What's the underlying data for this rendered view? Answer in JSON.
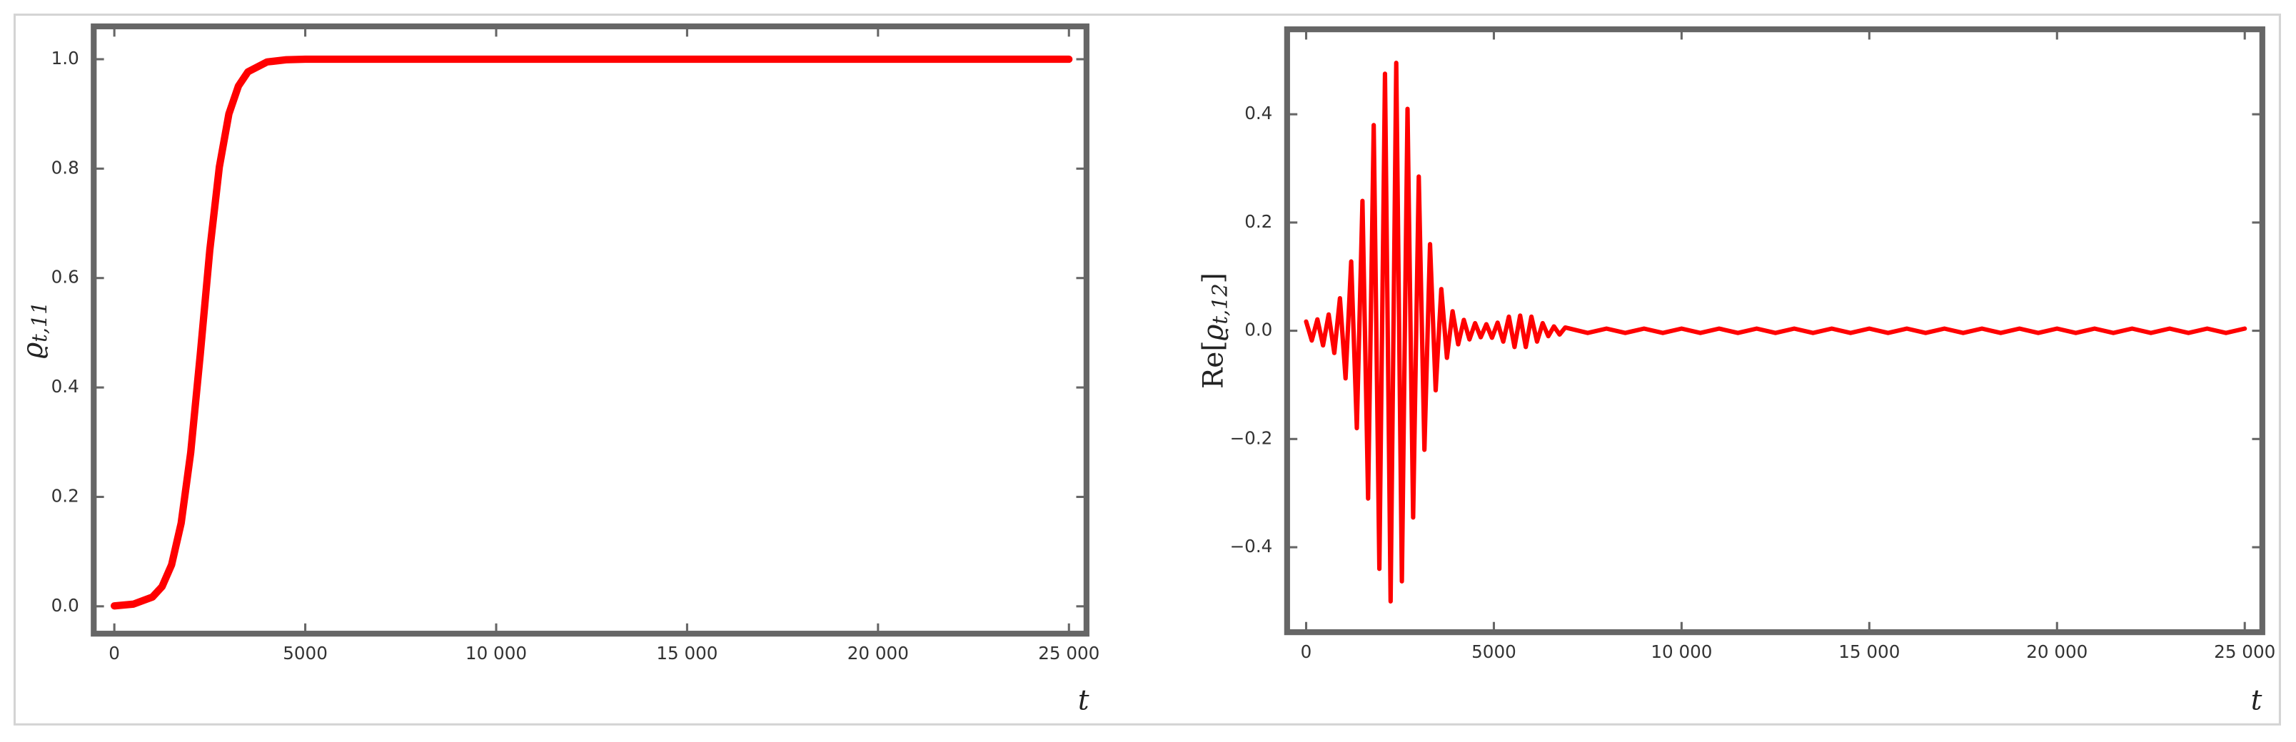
{
  "chart_data": [
    {
      "type": "line",
      "ylabel": {
        "base": "ϱ",
        "sub": "t,11"
      },
      "xlabel": "t",
      "x": [
        0,
        500,
        1000,
        1250,
        1500,
        1750,
        2000,
        2250,
        2500,
        2750,
        3000,
        3250,
        3500,
        4000,
        4500,
        5000,
        10000,
        15000,
        20000,
        25000
      ],
      "series": [
        {
          "color": "#ff0000",
          "values": [
            0.0008,
            0.004,
            0.017,
            0.036,
            0.076,
            0.152,
            0.281,
            0.46,
            0.651,
            0.803,
            0.9,
            0.951,
            0.977,
            0.995,
            0.999,
            1.0,
            1.0,
            1.0,
            1.0,
            1.0
          ]
        }
      ],
      "xlim": [
        -540,
        25460
      ],
      "ylim": [
        -0.05,
        1.06
      ],
      "xticks": [
        0,
        5000,
        {
          "value": 10000,
          "label": "10 000"
        },
        {
          "value": 15000,
          "label": "15 000"
        },
        {
          "value": 20000,
          "label": "20 000"
        },
        {
          "value": 25000,
          "label": "25 000"
        }
      ],
      "yticks": [
        {
          "value": 0,
          "label": "0.0"
        },
        {
          "value": 0.2,
          "label": "0.2"
        },
        {
          "value": 0.4,
          "label": "0.4"
        },
        {
          "value": 0.6,
          "label": "0.6"
        },
        {
          "value": 0.8,
          "label": "0.8"
        },
        {
          "value": 1,
          "label": "1.0"
        }
      ]
    },
    {
      "type": "line",
      "ylabel": {
        "prefix": "Re[",
        "base": "ϱ",
        "sub": "t,12",
        "suffix": "]"
      },
      "xlabel": "t",
      "x": [
        0,
        150,
        300,
        450,
        600,
        750,
        900,
        1050,
        1200,
        1350,
        1500,
        1650,
        1800,
        1950,
        2100,
        2250,
        2400,
        2550,
        2700,
        2850,
        3000,
        3150,
        3300,
        3450,
        3600,
        3750,
        3900,
        4050,
        4200,
        4350,
        4500,
        4650,
        4800,
        4950,
        5100,
        5250,
        5400,
        5550,
        5700,
        5850,
        6000,
        6150,
        6300,
        6450,
        6600,
        6750,
        6900,
        7500,
        8000,
        8500,
        9000,
        9500,
        10000,
        10500,
        11000,
        11500,
        12000,
        12500,
        13000,
        13500,
        14000,
        14500,
        15000,
        15500,
        16000,
        16500,
        17000,
        17500,
        18000,
        18500,
        19000,
        19500,
        20000,
        20500,
        21000,
        21500,
        22000,
        22500,
        23000,
        23500,
        24000,
        24500,
        25000
      ],
      "series": [
        {
          "color": "#ff0000",
          "values": [
            0.017,
            -0.018,
            0.021,
            -0.027,
            0.03,
            -0.041,
            0.06,
            -0.088,
            0.128,
            -0.18,
            0.24,
            -0.31,
            0.38,
            -0.44,
            0.475,
            -0.5,
            0.495,
            -0.463,
            0.41,
            -0.345,
            0.285,
            -0.22,
            0.16,
            -0.11,
            0.077,
            -0.05,
            0.036,
            -0.025,
            0.02,
            -0.016,
            0.014,
            -0.012,
            0.012,
            -0.013,
            0.015,
            -0.02,
            0.026,
            -0.03,
            0.028,
            -0.03,
            0.026,
            -0.02,
            0.014,
            -0.01,
            0.008,
            -0.007,
            0.006,
            -0.004,
            0.004,
            -0.004,
            0.004,
            -0.004,
            0.004,
            -0.004,
            0.004,
            -0.004,
            0.004,
            -0.004,
            0.004,
            -0.004,
            0.004,
            -0.004,
            0.004,
            -0.004,
            0.004,
            -0.004,
            0.004,
            -0.004,
            0.004,
            -0.004,
            0.004,
            -0.004,
            0.004,
            -0.004,
            0.004,
            -0.004,
            0.004,
            -0.004,
            0.004,
            -0.004,
            0.004,
            -0.004,
            0.004
          ]
        }
      ],
      "xlim": [
        -507,
        25468
      ],
      "ylim": [
        -0.557,
        0.557
      ],
      "xticks": [
        0,
        5000,
        {
          "value": 10000,
          "label": "10 000"
        },
        {
          "value": 15000,
          "label": "15 000"
        },
        {
          "value": 20000,
          "label": "20 000"
        },
        {
          "value": 25000,
          "label": "25 000"
        }
      ],
      "yticks": [
        {
          "value": -0.4,
          "label": "−0.4"
        },
        {
          "value": -0.2,
          "label": "−0.2"
        },
        {
          "value": 0,
          "label": "0.0"
        },
        {
          "value": 0.2,
          "label": "0.2"
        },
        {
          "value": 0.4,
          "label": "0.4"
        }
      ]
    }
  ]
}
